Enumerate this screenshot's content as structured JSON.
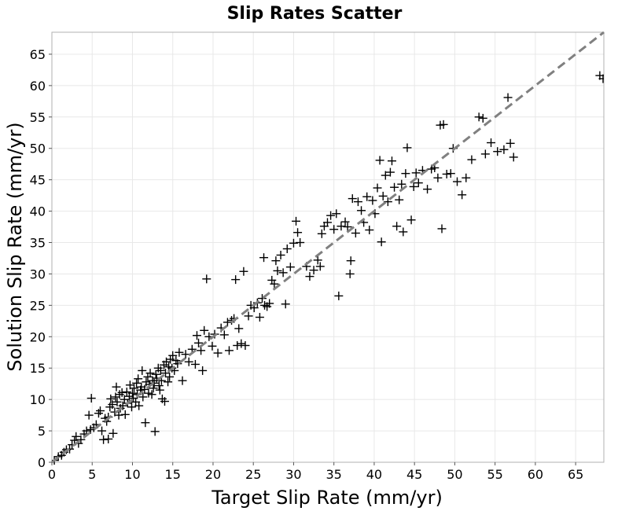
{
  "chart_data": {
    "type": "scatter",
    "title": "Slip Rates Scatter",
    "xlabel": "Target Slip Rate (mm/yr)",
    "ylabel": "Solution Slip Rate (mm/yr)",
    "xlim": [
      0,
      68.5
    ],
    "ylim": [
      0,
      68.5
    ],
    "xticks": [
      0,
      5,
      10,
      15,
      20,
      25,
      30,
      35,
      40,
      45,
      50,
      55,
      60,
      65
    ],
    "yticks": [
      0,
      5,
      10,
      15,
      20,
      25,
      30,
      35,
      40,
      45,
      50,
      55,
      60,
      65
    ],
    "grid": true,
    "marker": "plus",
    "marker_color": "#000000",
    "reference_line": {
      "style": "dashed",
      "color": "#808080",
      "from": [
        0,
        0
      ],
      "to": [
        68.5,
        68.5
      ]
    },
    "points": [
      [
        0.3,
        0.3
      ],
      [
        0.8,
        0.9
      ],
      [
        1.2,
        1.1
      ],
      [
        1.5,
        1.6
      ],
      [
        1.8,
        2.0
      ],
      [
        2.2,
        2.1
      ],
      [
        2.5,
        2.8
      ],
      [
        2.8,
        3.5
      ],
      [
        3.0,
        4.1
      ],
      [
        3.3,
        3.0
      ],
      [
        3.6,
        3.6
      ],
      [
        4.0,
        4.5
      ],
      [
        4.3,
        5.0
      ],
      [
        4.6,
        7.5
      ],
      [
        4.8,
        5.2
      ],
      [
        4.9,
        10.2
      ],
      [
        5.2,
        5.5
      ],
      [
        5.5,
        6.0
      ],
      [
        5.8,
        7.8
      ],
      [
        6.0,
        8.2
      ],
      [
        6.2,
        5.0
      ],
      [
        6.4,
        3.6
      ],
      [
        6.6,
        7.0
      ],
      [
        6.8,
        6.5
      ],
      [
        7.0,
        7.2
      ],
      [
        7.0,
        3.7
      ],
      [
        7.2,
        8.8
      ],
      [
        7.3,
        10.1
      ],
      [
        7.5,
        9.2
      ],
      [
        7.6,
        4.6
      ],
      [
        7.8,
        8.0
      ],
      [
        7.9,
        10.4
      ],
      [
        8.0,
        12.0
      ],
      [
        8.1,
        9.6
      ],
      [
        8.3,
        7.5
      ],
      [
        8.4,
        10.8
      ],
      [
        8.5,
        8.6
      ],
      [
        8.7,
        11.1
      ],
      [
        8.8,
        9.0
      ],
      [
        9.0,
        10.0
      ],
      [
        9.1,
        7.6
      ],
      [
        9.3,
        11.2
      ],
      [
        9.4,
        9.4
      ],
      [
        9.6,
        10.5
      ],
      [
        9.7,
        12.3
      ],
      [
        9.9,
        8.8
      ],
      [
        10.0,
        11.0
      ],
      [
        10.1,
        10.2
      ],
      [
        10.2,
        11.8
      ],
      [
        10.4,
        9.6
      ],
      [
        10.5,
        12.6
      ],
      [
        10.6,
        10.8
      ],
      [
        10.7,
        13.3
      ],
      [
        10.8,
        9.0
      ],
      [
        11.0,
        11.5
      ],
      [
        11.1,
        12.0
      ],
      [
        11.2,
        14.6
      ],
      [
        11.3,
        10.4
      ],
      [
        11.5,
        11.6
      ],
      [
        11.6,
        6.3
      ],
      [
        11.7,
        12.8
      ],
      [
        11.9,
        13.6
      ],
      [
        12.0,
        11.0
      ],
      [
        12.1,
        12.4
      ],
      [
        12.2,
        14.2
      ],
      [
        12.4,
        10.8
      ],
      [
        12.5,
        13.0
      ],
      [
        12.6,
        11.8
      ],
      [
        12.7,
        12.6
      ],
      [
        12.8,
        4.9
      ],
      [
        12.9,
        14.0
      ],
      [
        13.0,
        13.4
      ],
      [
        13.2,
        15.0
      ],
      [
        13.3,
        12.2
      ],
      [
        13.4,
        11.5
      ],
      [
        13.5,
        14.6
      ],
      [
        13.6,
        13.0
      ],
      [
        13.7,
        10.1
      ],
      [
        13.9,
        15.5
      ],
      [
        14.0,
        9.7
      ],
      [
        14.1,
        14.2
      ],
      [
        14.2,
        16.0
      ],
      [
        14.4,
        12.8
      ],
      [
        14.5,
        15.2
      ],
      [
        14.6,
        13.6
      ],
      [
        14.7,
        16.4
      ],
      [
        14.9,
        15.0
      ],
      [
        15.0,
        17.0
      ],
      [
        15.2,
        14.6
      ],
      [
        15.4,
        16.2
      ],
      [
        15.6,
        15.7
      ],
      [
        15.8,
        17.5
      ],
      [
        16.2,
        13.0
      ],
      [
        16.6,
        17.2
      ],
      [
        17.0,
        16.0
      ],
      [
        17.4,
        18.0
      ],
      [
        17.8,
        15.6
      ],
      [
        18.0,
        20.2
      ],
      [
        18.2,
        19.0
      ],
      [
        18.5,
        17.8
      ],
      [
        18.7,
        14.6
      ],
      [
        18.9,
        21.0
      ],
      [
        19.2,
        29.2
      ],
      [
        19.5,
        20.0
      ],
      [
        19.9,
        18.5
      ],
      [
        20.2,
        20.4
      ],
      [
        20.6,
        17.4
      ],
      [
        21.0,
        21.4
      ],
      [
        21.4,
        20.3
      ],
      [
        21.8,
        22.3
      ],
      [
        22.0,
        17.8
      ],
      [
        22.3,
        22.6
      ],
      [
        22.6,
        22.9
      ],
      [
        22.8,
        29.1
      ],
      [
        23.0,
        18.6
      ],
      [
        23.2,
        21.3
      ],
      [
        23.5,
        18.9
      ],
      [
        23.8,
        30.4
      ],
      [
        24.0,
        18.6
      ],
      [
        24.4,
        23.3
      ],
      [
        24.7,
        25.0
      ],
      [
        25.1,
        24.6
      ],
      [
        25.5,
        25.4
      ],
      [
        25.8,
        23.1
      ],
      [
        26.1,
        26.1
      ],
      [
        26.4,
        25.0
      ],
      [
        26.3,
        32.6
      ],
      [
        26.7,
        24.8
      ],
      [
        27.0,
        25.3
      ],
      [
        27.3,
        29.0
      ],
      [
        27.6,
        28.4
      ],
      [
        27.8,
        32.1
      ],
      [
        28.0,
        30.5
      ],
      [
        28.4,
        33.0
      ],
      [
        28.7,
        30.2
      ],
      [
        29.0,
        25.2
      ],
      [
        29.2,
        34.0
      ],
      [
        29.6,
        31.1
      ],
      [
        30.0,
        34.9
      ],
      [
        30.3,
        38.4
      ],
      [
        30.5,
        36.6
      ],
      [
        30.8,
        35.0
      ],
      [
        31.6,
        31.2
      ],
      [
        32.0,
        29.6
      ],
      [
        32.5,
        30.6
      ],
      [
        33.0,
        32.2
      ],
      [
        33.3,
        31.2
      ],
      [
        33.5,
        36.4
      ],
      [
        33.8,
        37.6
      ],
      [
        34.2,
        38.2
      ],
      [
        34.6,
        39.3
      ],
      [
        35.0,
        37.1
      ],
      [
        35.3,
        39.6
      ],
      [
        35.6,
        26.5
      ],
      [
        35.9,
        37.6
      ],
      [
        36.4,
        38.3
      ],
      [
        36.7,
        37.5
      ],
      [
        37.0,
        30.0
      ],
      [
        37.1,
        32.1
      ],
      [
        37.3,
        42.0
      ],
      [
        37.7,
        36.5
      ],
      [
        38.0,
        41.5
      ],
      [
        38.4,
        40.1
      ],
      [
        38.7,
        38.2
      ],
      [
        39.1,
        42.3
      ],
      [
        39.4,
        37.0
      ],
      [
        39.8,
        41.7
      ],
      [
        40.1,
        39.6
      ],
      [
        40.4,
        43.7
      ],
      [
        40.7,
        48.1
      ],
      [
        40.9,
        35.1
      ],
      [
        41.1,
        42.4
      ],
      [
        41.4,
        45.7
      ],
      [
        41.7,
        41.5
      ],
      [
        42.0,
        46.2
      ],
      [
        42.2,
        48.0
      ],
      [
        42.5,
        43.8
      ],
      [
        42.8,
        37.6
      ],
      [
        43.1,
        41.8
      ],
      [
        43.4,
        44.3
      ],
      [
        43.6,
        36.7
      ],
      [
        43.9,
        46.0
      ],
      [
        44.1,
        50.1
      ],
      [
        44.6,
        38.6
      ],
      [
        44.9,
        43.9
      ],
      [
        45.2,
        46.1
      ],
      [
        45.5,
        44.5
      ],
      [
        46.0,
        46.5
      ],
      [
        46.6,
        43.5
      ],
      [
        47.1,
        46.7
      ],
      [
        47.5,
        46.9
      ],
      [
        47.9,
        45.3
      ],
      [
        48.2,
        53.7
      ],
      [
        48.4,
        37.2
      ],
      [
        48.6,
        53.8
      ],
      [
        49.0,
        45.9
      ],
      [
        49.5,
        46.0
      ],
      [
        49.8,
        50.0
      ],
      [
        50.3,
        44.7
      ],
      [
        50.9,
        42.6
      ],
      [
        51.4,
        45.3
      ],
      [
        52.1,
        48.2
      ],
      [
        53.0,
        55.0
      ],
      [
        53.5,
        54.8
      ],
      [
        53.8,
        49.1
      ],
      [
        54.5,
        50.9
      ],
      [
        55.3,
        49.5
      ],
      [
        56.1,
        49.8
      ],
      [
        56.6,
        58.1
      ],
      [
        56.9,
        50.8
      ],
      [
        57.3,
        48.6
      ],
      [
        68.0,
        61.6
      ],
      [
        68.4,
        61.1
      ]
    ]
  }
}
